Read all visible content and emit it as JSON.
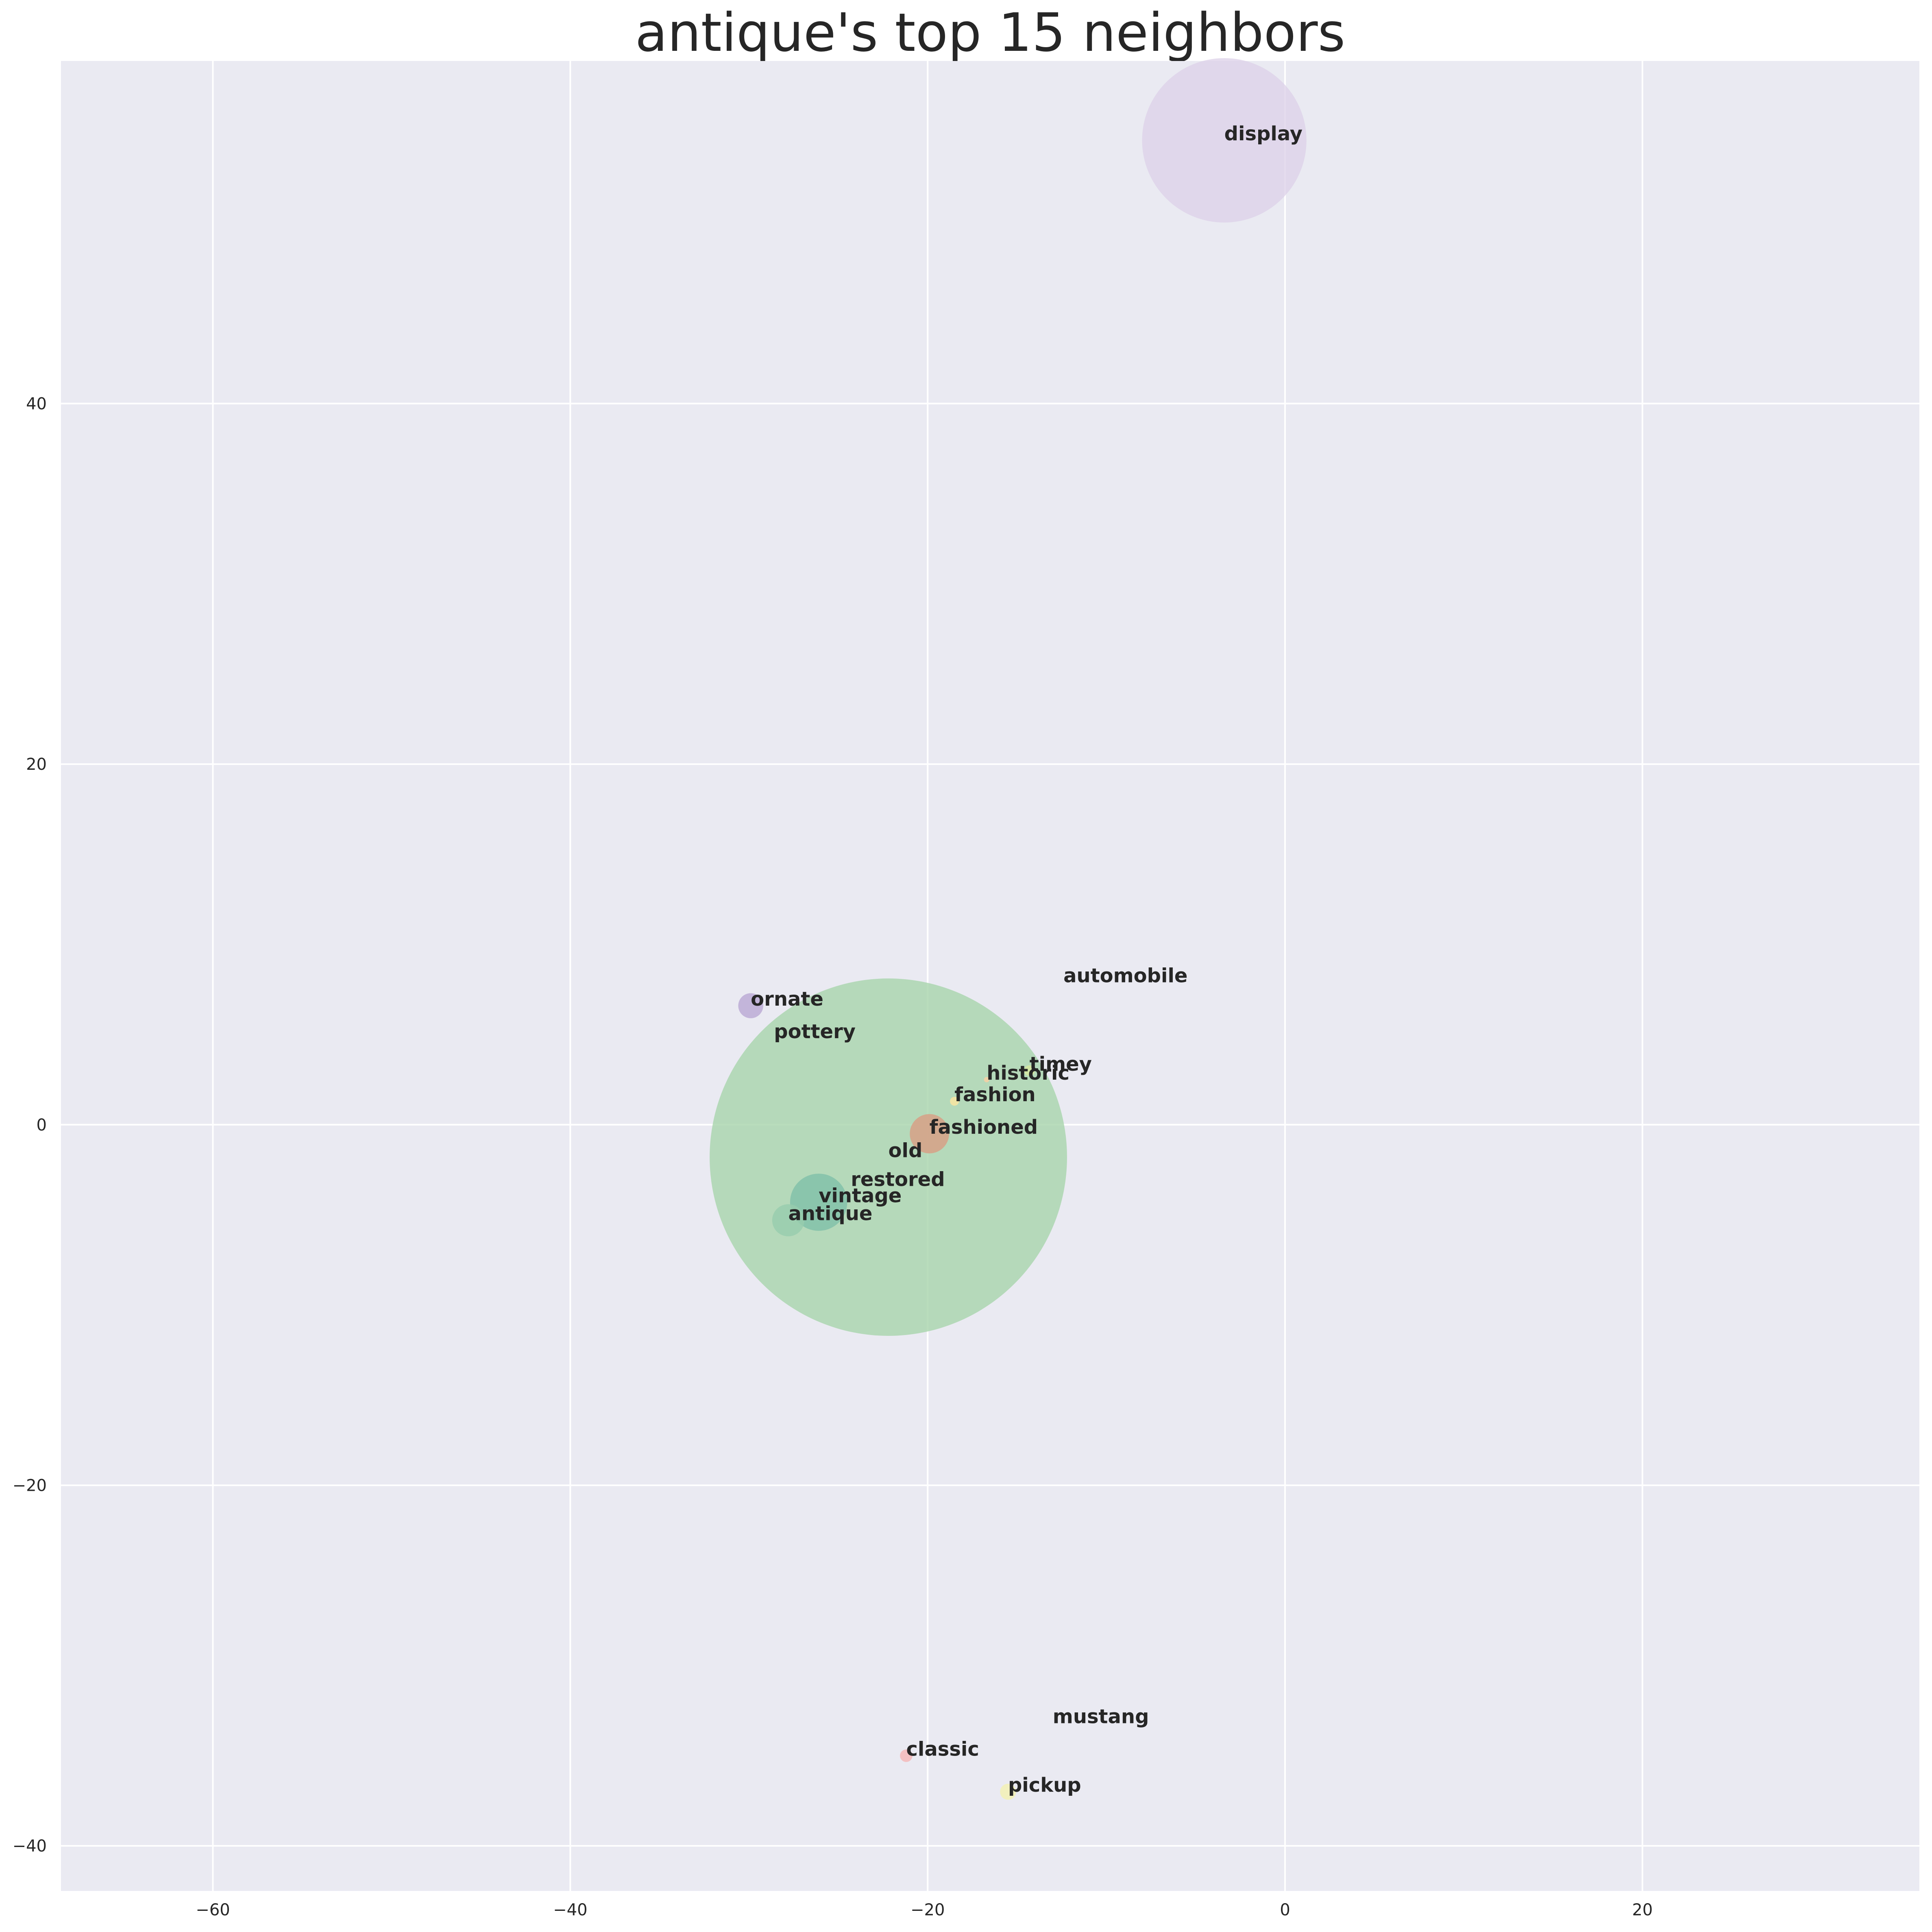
{
  "chart_data": {
    "type": "scatter",
    "title": "antique's top 15 neighbors",
    "xlabel": "",
    "ylabel": "",
    "xlim": [
      -68.5,
      35.5
    ],
    "ylim": [
      -42.5,
      59
    ],
    "x_ticks": [
      -60,
      -40,
      -20,
      0,
      20
    ],
    "y_ticks": [
      -40,
      -20,
      0,
      20,
      40
    ],
    "grid": true,
    "legend": "none",
    "background_color": "#eaeaf2",
    "grid_color": "#ffffff",
    "points": [
      {
        "label": "display",
        "x": -3.4,
        "y": 54.6,
        "size": 4.6,
        "color": "#dcd0e8",
        "opacity": 0.75
      },
      {
        "label": "old",
        "x": -22.2,
        "y": -1.8,
        "size": 10.0,
        "color": "#a8d5ab",
        "opacity": 0.8
      },
      {
        "label": "ornate",
        "x": -29.9,
        "y": 6.6,
        "size": 0.7,
        "color": "#b9a7d3",
        "opacity": 0.8
      },
      {
        "label": "pottery",
        "x": -28.6,
        "y": 4.8,
        "size": 0.0,
        "color": "#9ecae1",
        "opacity": 0.8
      },
      {
        "label": "automobile",
        "x": -12.4,
        "y": 7.9,
        "size": 0.0,
        "color": "#fdd0a2",
        "opacity": 0.8
      },
      {
        "label": "timey",
        "x": -14.3,
        "y": 3.0,
        "size": 0.3,
        "color": "#d9e8a0",
        "opacity": 0.8
      },
      {
        "label": "historic",
        "x": -16.7,
        "y": 2.5,
        "size": 0.15,
        "color": "#fdd0a2",
        "opacity": 0.8
      },
      {
        "label": "fashion",
        "x": -18.5,
        "y": 1.3,
        "size": 0.25,
        "color": "#fee6a0",
        "opacity": 0.8
      },
      {
        "label": "fashioned",
        "x": -19.9,
        "y": -0.5,
        "size": 1.1,
        "color": "#d7a086",
        "opacity": 0.85
      },
      {
        "label": "restored",
        "x": -24.3,
        "y": -3.4,
        "size": 0.0,
        "color": "#c7e9c0",
        "opacity": 0.8
      },
      {
        "label": "vintage",
        "x": -26.1,
        "y": -4.3,
        "size": 1.6,
        "color": "#7fbfa9",
        "opacity": 0.8
      },
      {
        "label": "antique",
        "x": -27.8,
        "y": -5.3,
        "size": 0.9,
        "color": "#97ccae",
        "opacity": 0.8
      },
      {
        "label": "mustang",
        "x": -13.0,
        "y": -33.2,
        "size": 0.0,
        "color": "#dddddd",
        "opacity": 0.8
      },
      {
        "label": "classic",
        "x": -21.2,
        "y": -35.0,
        "size": 0.35,
        "color": "#f5b5b5",
        "opacity": 0.8
      },
      {
        "label": "pickup",
        "x": -15.5,
        "y": -37.0,
        "size": 0.45,
        "color": "#f4f1b0",
        "opacity": 0.8
      }
    ]
  }
}
